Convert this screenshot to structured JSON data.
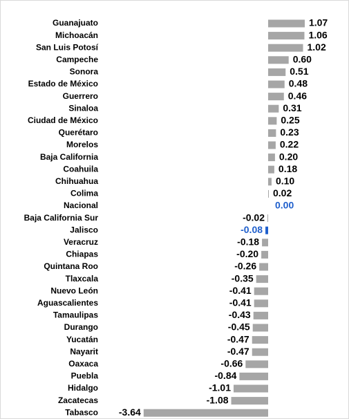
{
  "chart_data": {
    "type": "bar",
    "orientation": "horizontal",
    "categories": [
      "Guanajuato",
      "Michoacán",
      "San Luis Potosí",
      "Campeche",
      "Sonora",
      "Estado de México",
      "Guerrero",
      "Sinaloa",
      "Ciudad de México",
      "Querétaro",
      "Morelos",
      "Baja California",
      "Coahuila",
      "Chihuahua",
      "Colima",
      "Nacional",
      "Baja California Sur",
      "Jalisco",
      "Veracruz",
      "Chiapas",
      "Quintana Roo",
      "Tlaxcala",
      "Nuevo León",
      "Aguascalientes",
      "Tamaulipas",
      "Durango",
      "Yucatán",
      "Nayarit",
      "Oaxaca",
      "Puebla",
      "Hidalgo",
      "Zacatecas",
      "Tabasco"
    ],
    "values": [
      1.07,
      1.06,
      1.02,
      0.6,
      0.51,
      0.48,
      0.46,
      0.31,
      0.25,
      0.23,
      0.22,
      0.2,
      0.18,
      0.1,
      0.02,
      0.0,
      -0.02,
      -0.08,
      -0.18,
      -0.2,
      -0.26,
      -0.35,
      -0.41,
      -0.41,
      -0.43,
      -0.45,
      -0.47,
      -0.47,
      -0.66,
      -0.84,
      -1.01,
      -1.08,
      -3.64
    ],
    "value_labels": [
      "1.07",
      "1.06",
      "1.02",
      "0.60",
      "0.51",
      "0.48",
      "0.46",
      "0.31",
      "0.25",
      "0.23",
      "0.22",
      "0.20",
      "0.18",
      "0.10",
      "0.02",
      "0.00",
      "-0.02",
      "-0.08",
      "-0.18",
      "-0.20",
      "-0.26",
      "-0.35",
      "-0.41",
      "-0.41",
      "-0.43",
      "-0.45",
      "-0.47",
      "-0.47",
      "-0.66",
      "-0.84",
      "-1.01",
      "-1.08",
      "-3.64"
    ],
    "colors": [
      "#a6a6a6",
      "#a6a6a6",
      "#a6a6a6",
      "#a6a6a6",
      "#a6a6a6",
      "#a6a6a6",
      "#a6a6a6",
      "#a6a6a6",
      "#a6a6a6",
      "#a6a6a6",
      "#a6a6a6",
      "#a6a6a6",
      "#a6a6a6",
      "#a6a6a6",
      "#a6a6a6",
      "#1f5fcc",
      "#a6a6a6",
      "#1f5fcc",
      "#a6a6a6",
      "#a6a6a6",
      "#a6a6a6",
      "#a6a6a6",
      "#a6a6a6",
      "#a6a6a6",
      "#a6a6a6",
      "#a6a6a6",
      "#a6a6a6",
      "#a6a6a6",
      "#a6a6a6",
      "#a6a6a6",
      "#a6a6a6",
      "#a6a6a6",
      "#a6a6a6"
    ],
    "value_label_colors": [
      "#000000",
      "#000000",
      "#000000",
      "#000000",
      "#000000",
      "#000000",
      "#000000",
      "#000000",
      "#000000",
      "#000000",
      "#000000",
      "#000000",
      "#000000",
      "#000000",
      "#000000",
      "#1f5fcc",
      "#000000",
      "#1f5fcc",
      "#000000",
      "#000000",
      "#000000",
      "#000000",
      "#000000",
      "#000000",
      "#000000",
      "#000000",
      "#000000",
      "#000000",
      "#000000",
      "#000000",
      "#000000",
      "#000000",
      "#000000"
    ]
  }
}
